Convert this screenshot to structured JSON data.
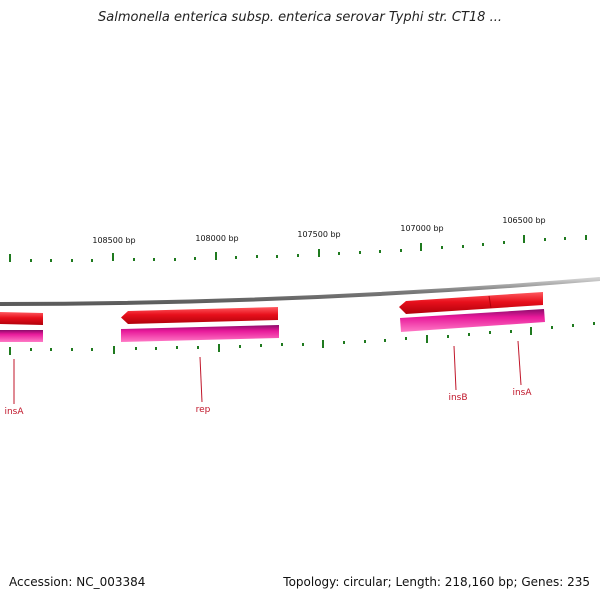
{
  "title": "Salmonella enterica subsp. enterica serovar Typhi str. CT18 ...",
  "footer": {
    "accession": "Accession: NC_003384",
    "summary": "Topology: circular; Length: 218,160 bp; Genes: 235"
  },
  "scale_labels": [
    "108500 bp",
    "108000 bp",
    "107500 bp",
    "107000 bp",
    "106500 bp"
  ],
  "genes": [
    {
      "name": "insA"
    },
    {
      "name": "rep"
    },
    {
      "name": "insB"
    },
    {
      "name": "insA"
    }
  ],
  "colors": {
    "forward_feature": "#e8101c",
    "cds_feature": "#e8199a",
    "backbone": "#8a8a8a",
    "ticks": "#1f7a1f",
    "gene_label": "#c0162a"
  }
}
